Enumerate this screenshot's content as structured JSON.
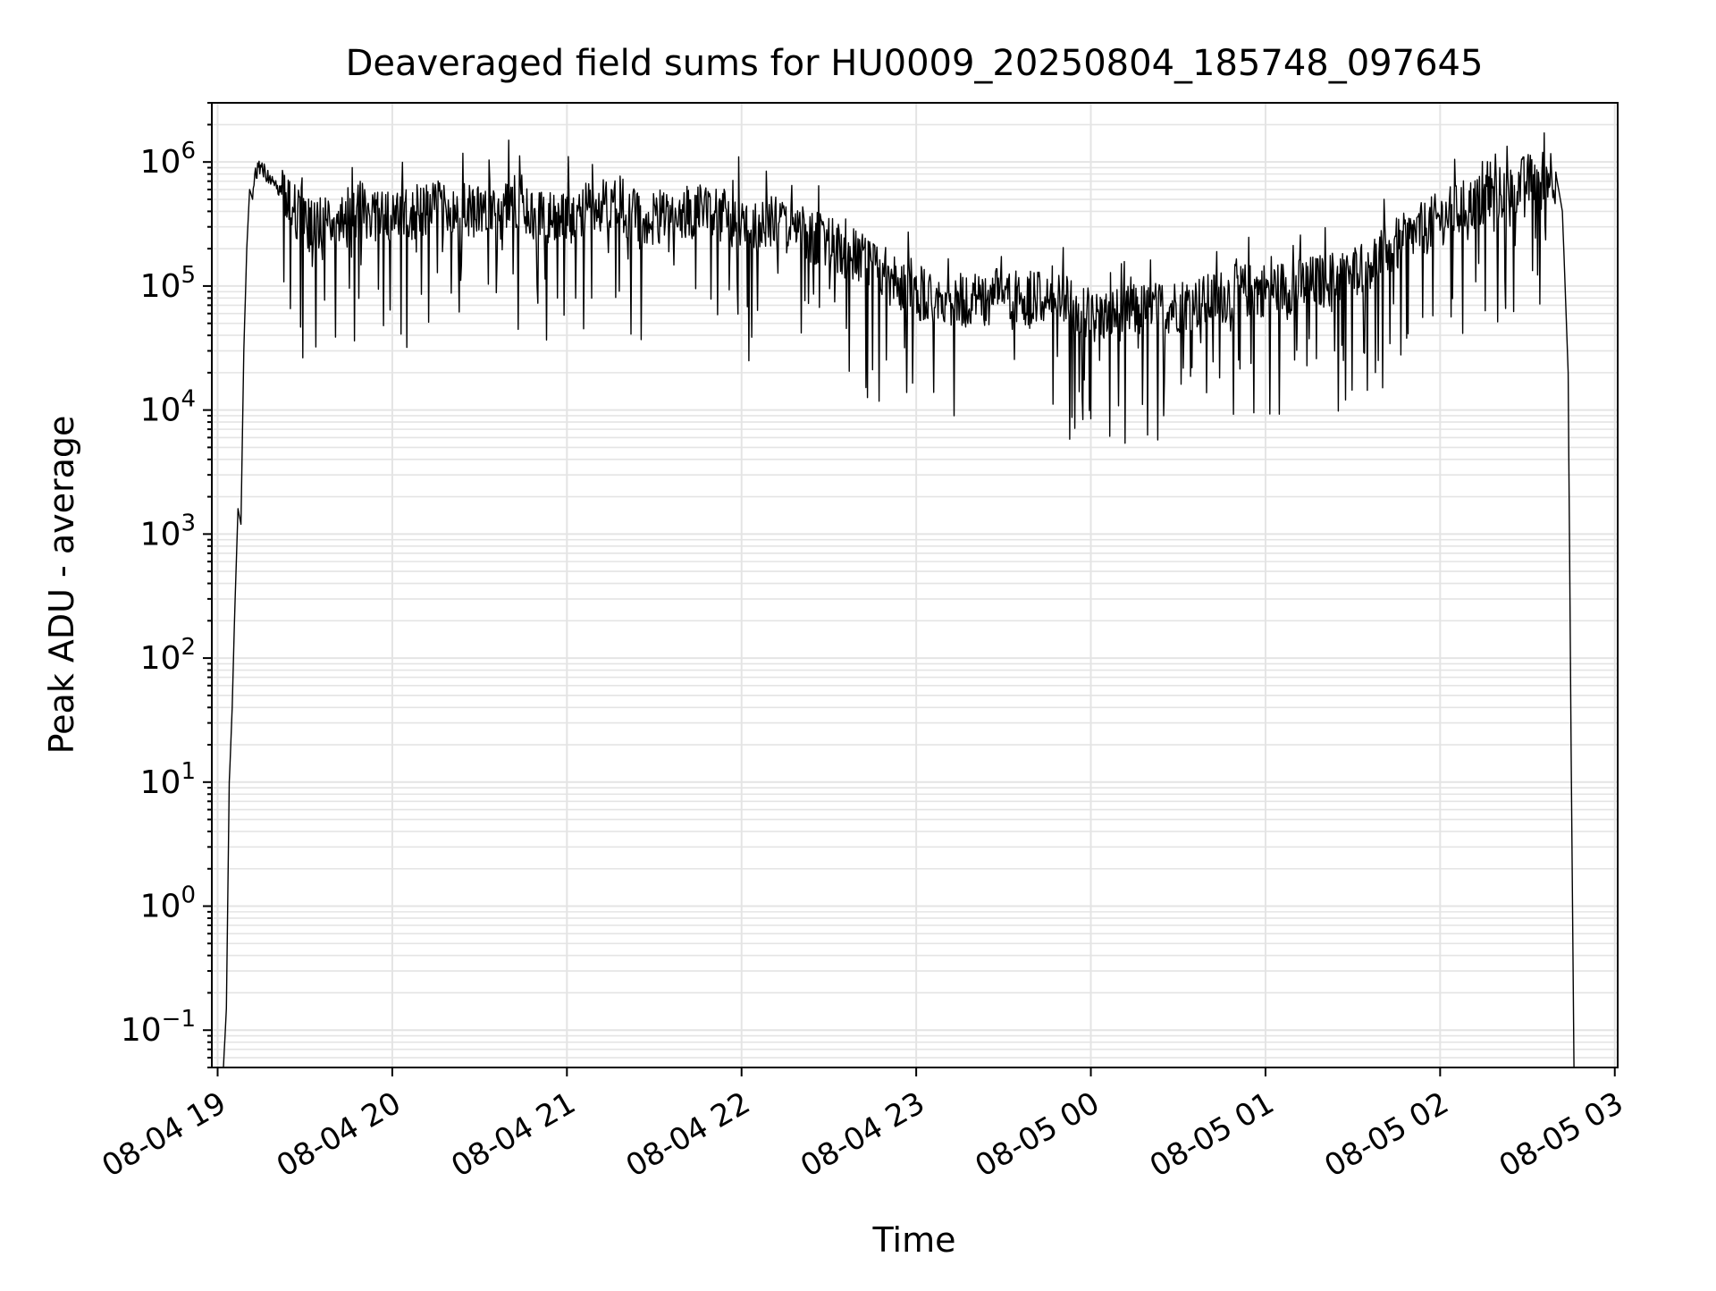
{
  "chart_data": {
    "type": "line",
    "title": "Deaveraged field sums for HU0009_20250804_185748_097645",
    "xlabel": "Time",
    "ylabel": "Peak ADU - average",
    "yscale": "log",
    "ylim": [
      0.05,
      3000000
    ],
    "xlim": [
      "2025-08-04 18:58",
      "2025-08-05 03:01"
    ],
    "grid": true,
    "legend": "none",
    "colors": {
      "line": "#000000",
      "grid": "#e4e4e4",
      "axes": "#000000",
      "background": "#ffffff"
    },
    "x_ticks": [
      "08-04 19",
      "08-04 20",
      "08-04 21",
      "08-04 22",
      "08-04 23",
      "08-05 00",
      "08-05 01",
      "08-05 02",
      "08-05 03"
    ],
    "x_tick_times": [
      "2025-08-04 19:00",
      "2025-08-04 20:00",
      "2025-08-04 21:00",
      "2025-08-04 22:00",
      "2025-08-04 23:00",
      "2025-08-05 00:00",
      "2025-08-05 01:00",
      "2025-08-05 02:00",
      "2025-08-05 03:00"
    ],
    "y_ticks": [
      {
        "value": 0.1,
        "label_base": "10",
        "label_exp": "−1"
      },
      {
        "value": 1,
        "label_base": "10",
        "label_exp": "0"
      },
      {
        "value": 10,
        "label_base": "10",
        "label_exp": "1"
      },
      {
        "value": 100,
        "label_base": "10",
        "label_exp": "2"
      },
      {
        "value": 1000,
        "label_base": "10",
        "label_exp": "3"
      },
      {
        "value": 10000,
        "label_base": "10",
        "label_exp": "4"
      },
      {
        "value": 100000,
        "label_base": "10",
        "label_exp": "5"
      },
      {
        "value": 1000000,
        "label_base": "10",
        "label_exp": "6"
      }
    ],
    "series": [
      {
        "x": [
          "2025-08-04 19:02",
          "2025-08-04 19:03",
          "2025-08-04 19:04",
          "2025-08-04 19:05",
          "2025-08-04 19:06",
          "2025-08-04 19:07",
          "2025-08-04 19:08",
          "2025-08-04 19:09",
          "2025-08-04 19:10",
          "2025-08-04 19:11",
          "2025-08-04 19:12",
          "2025-08-04 19:13",
          "2025-08-04 19:14",
          "2025-08-04 19:16",
          "2025-08-04 19:18",
          "2025-08-04 19:20",
          "2025-08-04 19:22",
          "2025-08-04 19:25",
          "2025-08-04 19:30",
          "2025-08-04 19:40",
          "2025-08-04 19:50",
          "2025-08-04 20:00",
          "2025-08-04 20:10",
          "2025-08-04 20:20",
          "2025-08-04 20:30",
          "2025-08-04 20:40",
          "2025-08-04 20:50",
          "2025-08-04 21:00",
          "2025-08-04 21:10",
          "2025-08-04 21:20",
          "2025-08-04 21:30",
          "2025-08-04 21:40",
          "2025-08-04 21:50",
          "2025-08-04 22:00",
          "2025-08-04 22:10",
          "2025-08-04 22:20",
          "2025-08-04 22:30",
          "2025-08-04 22:40",
          "2025-08-04 22:50",
          "2025-08-04 23:00",
          "2025-08-04 23:10",
          "2025-08-04 23:20",
          "2025-08-04 23:30",
          "2025-08-04 23:40",
          "2025-08-04 23:50",
          "2025-08-05 00:00",
          "2025-08-05 00:10",
          "2025-08-05 00:20",
          "2025-08-05 00:30",
          "2025-08-05 00:40",
          "2025-08-05 00:50",
          "2025-08-05 01:00",
          "2025-08-05 01:10",
          "2025-08-05 01:20",
          "2025-08-05 01:30",
          "2025-08-05 01:40",
          "2025-08-05 01:50",
          "2025-08-05 02:00",
          "2025-08-05 02:10",
          "2025-08-05 02:20",
          "2025-08-05 02:30",
          "2025-08-05 02:35",
          "2025-08-05 02:38",
          "2025-08-05 02:40",
          "2025-08-05 02:42",
          "2025-08-05 02:44",
          "2025-08-05 02:45",
          "2025-08-05 02:46"
        ],
        "y": [
          0.05,
          0.15,
          10,
          40,
          300,
          1600,
          1200,
          30000,
          200000,
          600000,
          500000,
          800000,
          900000,
          850000,
          700000,
          650000,
          550000,
          450000,
          300000,
          350000,
          400000,
          350000,
          400000,
          450000,
          400000,
          500000,
          350000,
          400000,
          450000,
          400000,
          350000,
          380000,
          400000,
          300000,
          320000,
          280000,
          220000,
          170000,
          120000,
          90000,
          80000,
          75000,
          85000,
          80000,
          75000,
          55000,
          60000,
          65000,
          70000,
          75000,
          90000,
          95000,
          100000,
          110000,
          130000,
          180000,
          250000,
          350000,
          450000,
          550000,
          700000,
          800000,
          820000,
          750000,
          400000,
          20000,
          18,
          0.05
        ],
        "noise": {
          "description": "dense high-frequency fluctuation around the trend",
          "peak_ratio": 2.8,
          "dip_ratio_min": 0.08,
          "extreme_peaks": [
            {
              "x": "2025-08-04 20:40",
              "y": 1500000
            },
            {
              "x": "2025-08-04 21:59",
              "y": 1100000
            },
            {
              "x": "2025-08-05 02:05",
              "y": 1050000
            }
          ],
          "extreme_dips": [
            {
              "x": "2025-08-04 23:13",
              "y": 9000
            },
            {
              "x": "2025-08-05 00:00",
              "y": 8500
            },
            {
              "x": "2025-08-05 00:25",
              "y": 9000
            },
            {
              "x": "2025-08-05 00:56",
              "y": 9500
            },
            {
              "x": "2025-08-05 01:25",
              "y": 9800
            }
          ]
        }
      }
    ]
  }
}
